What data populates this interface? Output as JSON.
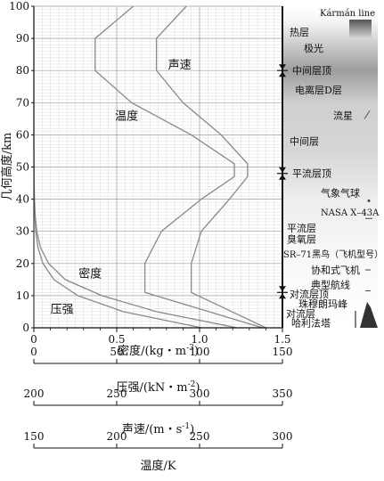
{
  "chart_data": {
    "type": "line",
    "ylabel": "几何高度/km",
    "ylim": [
      0,
      100
    ],
    "yticks": [
      0,
      10,
      20,
      30,
      40,
      50,
      60,
      70,
      80,
      90,
      100
    ],
    "grid": true,
    "series": [
      {
        "name": "密度",
        "points": [
          [
            1.225,
            0
          ],
          [
            0.74,
            5
          ],
          [
            0.41,
            10
          ],
          [
            0.19,
            15
          ],
          [
            0.089,
            20
          ],
          [
            0.04,
            25
          ],
          [
            0.018,
            30
          ],
          [
            0.008,
            35
          ],
          [
            0.004,
            40
          ],
          [
            0.0018,
            45
          ],
          [
            0.001,
            50
          ],
          [
            0,
            60
          ],
          [
            0,
            100
          ]
        ]
      },
      {
        "name": "压强",
        "points": [
          [
            101.3,
            0
          ],
          [
            54,
            5
          ],
          [
            26.5,
            10
          ],
          [
            12.1,
            15
          ],
          [
            5.5,
            20
          ],
          [
            2.5,
            25
          ],
          [
            1.2,
            30
          ],
          [
            0.57,
            35
          ],
          [
            0.29,
            40
          ],
          [
            0.14,
            45
          ],
          [
            0.08,
            50
          ],
          [
            0,
            60
          ],
          [
            0,
            100
          ]
        ]
      },
      {
        "name": "声速",
        "points": [
          [
            340,
            0
          ],
          [
            295,
            11
          ],
          [
            295,
            20
          ],
          [
            301,
            30
          ],
          [
            318,
            40
          ],
          [
            329,
            47
          ],
          [
            329,
            51
          ],
          [
            313,
            60
          ],
          [
            290,
            70
          ],
          [
            274,
            80
          ],
          [
            274,
            90
          ],
          [
            292,
            100
          ]
        ]
      },
      {
        "name": "温度",
        "points": [
          [
            288,
            0
          ],
          [
            217,
            11
          ],
          [
            217,
            20
          ],
          [
            227,
            30
          ],
          [
            251,
            40
          ],
          [
            271,
            47
          ],
          [
            271,
            51
          ],
          [
            245,
            60
          ],
          [
            209,
            70
          ],
          [
            187,
            80
          ],
          [
            187,
            90
          ],
          [
            210,
            100
          ]
        ]
      }
    ],
    "axes": [
      {
        "label": "密度/(kg・m⁻³)",
        "range": [
          0,
          1.5
        ],
        "ticks": [
          "0",
          "0.5",
          "1.0",
          "1.5"
        ]
      },
      {
        "label": "压强/(kN・m⁻²)",
        "range": [
          0,
          150
        ],
        "ticks": [
          "0",
          "50",
          "100",
          "150"
        ]
      },
      {
        "label": "声速/(m・s⁻¹)",
        "range": [
          200,
          350
        ],
        "ticks": [
          "200",
          "250",
          "300",
          "350"
        ]
      },
      {
        "label": "温度/K",
        "range": [
          150,
          300
        ],
        "ticks": [
          "150",
          "200",
          "250",
          "300"
        ]
      }
    ],
    "curve_labels": [
      {
        "text": "声速",
        "series": "声速",
        "near": [
          0.88,
          82
        ]
      },
      {
        "text": "温度",
        "series": "温度",
        "near": [
          0.56,
          66
        ]
      },
      {
        "text": "密度",
        "series": "密度",
        "near": [
          0.34,
          17
        ]
      },
      {
        "text": "压强",
        "series": "压强",
        "near": [
          0.17,
          6
        ]
      }
    ],
    "layer_boundaries": [
      {
        "name": "中间层顶",
        "altitude": 80
      },
      {
        "name": "平流层顶",
        "altitude": 48
      },
      {
        "name": "对流层顶",
        "altitude": 11
      }
    ],
    "atmosphere_labels": [
      {
        "text": "Kármán line",
        "altitude": 98
      },
      {
        "text": "热层",
        "altitude": 92
      },
      {
        "text": "极光",
        "altitude": 87
      },
      {
        "text": "中间层顶",
        "altitude": 80
      },
      {
        "text": "电离层D层",
        "altitude": 74
      },
      {
        "text": "流星",
        "altitude": 66
      },
      {
        "text": "中间层",
        "altitude": 58
      },
      {
        "text": "平流层顶",
        "altitude": 48
      },
      {
        "text": "气象气球",
        "altitude": 42
      },
      {
        "text": "NASA X–43A",
        "altitude": 36
      },
      {
        "text": "平流层",
        "altitude": 31
      },
      {
        "text": "臭氧层",
        "altitude": 27.5
      },
      {
        "text": "SR–71黑鸟（飞机型号）",
        "altitude": 23
      },
      {
        "text": "协和式飞机",
        "altitude": 18
      },
      {
        "text": "典型航线",
        "altitude": 13.5
      },
      {
        "text": "对流层顶",
        "altitude": 10.5
      },
      {
        "text": "珠穆朗玛峰",
        "altitude": 7.5
      },
      {
        "text": "对流层",
        "altitude": 4.5
      },
      {
        "text": "哈利法塔",
        "altitude": 1.5
      }
    ],
    "colors": {
      "curves": "#8a8a8a",
      "grid_major": "#9a9a9a",
      "grid_minor": "#cfcfcf",
      "axis": "#111111"
    }
  }
}
